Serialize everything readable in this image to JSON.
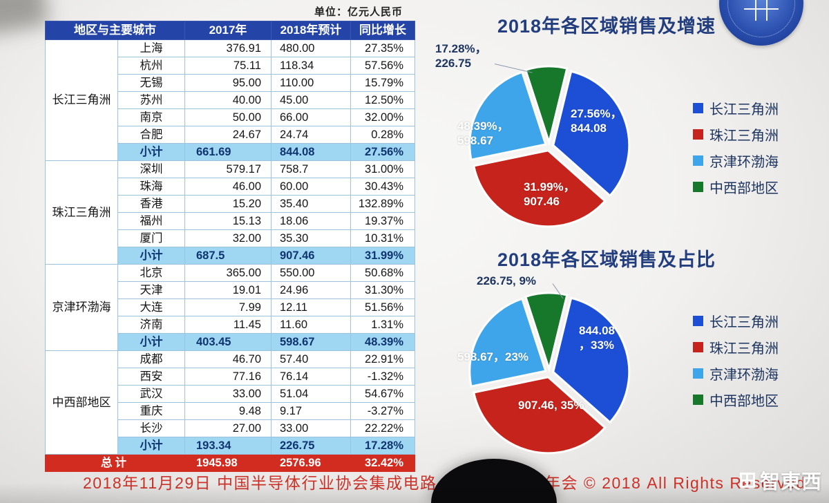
{
  "meta": {
    "unit_label": "单位：亿元人民币",
    "footer_left": "2018年11月29日  中国半导体行业协会集成电路",
    "footer_right": "年会 © 2018 All Rights Reserved",
    "watermark": "智東西"
  },
  "table": {
    "headers": [
      "地区与主要城市",
      "2017年",
      "2018年预计",
      "同比增长"
    ],
    "groups": [
      {
        "region": "长江三角洲",
        "rows": [
          [
            "上海",
            "376.91",
            "480.00",
            "27.35%"
          ],
          [
            "杭州",
            "75.11",
            "118.34",
            "57.56%"
          ],
          [
            "无锡",
            "95.00",
            "110.00",
            "15.79%"
          ],
          [
            "苏州",
            "40.00",
            "45.00",
            "12.50%"
          ],
          [
            "南京",
            "50.00",
            "66.00",
            "32.00%"
          ],
          [
            "合肥",
            "24.67",
            "24.74",
            "0.28%"
          ]
        ],
        "subtotal": [
          "小计",
          "661.69",
          "844.08",
          "27.56%"
        ]
      },
      {
        "region": "珠江三角洲",
        "rows": [
          [
            "深圳",
            "579.17",
            "758.7",
            "31.00%"
          ],
          [
            "珠海",
            "46.00",
            "60.00",
            "30.43%"
          ],
          [
            "香港",
            "15.20",
            "35.40",
            "132.89%"
          ],
          [
            "福州",
            "15.13",
            "18.06",
            "19.37%"
          ],
          [
            "厦门",
            "32.00",
            "35.30",
            "10.31%"
          ]
        ],
        "subtotal": [
          "小计",
          "687.5",
          "907.46",
          "31.99%"
        ]
      },
      {
        "region": "京津环渤海",
        "rows": [
          [
            "北京",
            "365.00",
            "550.00",
            "50.68%"
          ],
          [
            "天津",
            "19.01",
            "24.96",
            "31.30%"
          ],
          [
            "大连",
            "7.99",
            "12.11",
            "51.56%"
          ],
          [
            "济南",
            "11.45",
            "11.60",
            "1.31%"
          ]
        ],
        "subtotal": [
          "小计",
          "403.45",
          "598.67",
          "48.39%"
        ]
      },
      {
        "region": "中西部地区",
        "rows": [
          [
            "成都",
            "46.70",
            "57.40",
            "22.91%"
          ],
          [
            "西安",
            "77.16",
            "76.14",
            "-1.32%"
          ],
          [
            "武汉",
            "33.00",
            "51.04",
            "54.67%"
          ],
          [
            "重庆",
            "9.48",
            "9.17",
            "-3.27%"
          ],
          [
            "长沙",
            "27.00",
            "33.00",
            "22.22%"
          ]
        ],
        "subtotal": [
          "小计",
          "193.34",
          "226.75",
          "17.28%"
        ]
      }
    ],
    "total": [
      "总计",
      "1945.98",
      "2576.96",
      "32.42%"
    ]
  },
  "chart_data": [
    {
      "type": "pie",
      "title": "2018年各区域销售及增速",
      "legend": [
        "长江三角洲",
        "珠江三角洲",
        "京津环渤海",
        "中西部地区"
      ],
      "values": [
        844.08,
        907.46,
        598.67,
        226.75
      ],
      "colors": [
        "#1d4fd6",
        "#c5231b",
        "#3fa5ea",
        "#17782b"
      ],
      "slice_labels": [
        "27.56%，\n844.08",
        "31.99%，\n907.46",
        "48.39%，\n598.67",
        "17.28%，\n226.75"
      ],
      "start_angle": -18,
      "draw_order": [
        3,
        0,
        1,
        2
      ],
      "legend_position": "right"
    },
    {
      "type": "pie",
      "title": "2018年各区域销售及占比",
      "legend": [
        "长江三角洲",
        "珠江三角洲",
        "京津环渤海",
        "中西部地区"
      ],
      "values": [
        844.08,
        907.46,
        598.67,
        226.75
      ],
      "colors": [
        "#1d4fd6",
        "#c5231b",
        "#3fa5ea",
        "#17782b"
      ],
      "slice_labels": [
        "844.08\n，33%",
        "907.46, 35%",
        "598.67，23%",
        "226.75, 9%"
      ],
      "start_angle": -18,
      "draw_order": [
        3,
        0,
        1,
        2
      ],
      "legend_position": "right"
    }
  ]
}
